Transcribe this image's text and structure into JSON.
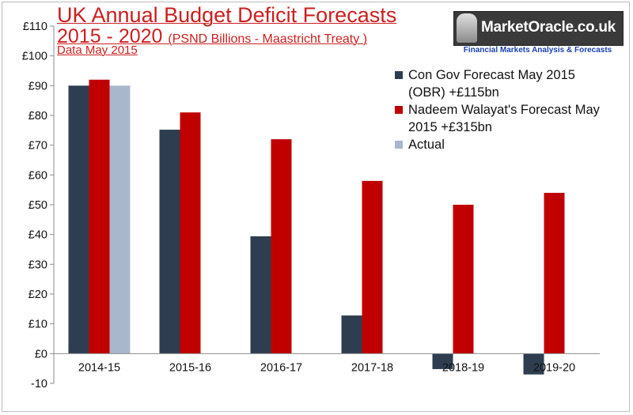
{
  "chart_data": {
    "type": "bar",
    "title": "UK Annual Budget Deficit Forecasts",
    "title_line2": "2015 - 2020",
    "title_line2_sub": "(PSND Billions - Maastricht Treaty )",
    "subtitle": "Data  May 2015",
    "categories": [
      "2014-15",
      "2015-16",
      "2016-17",
      "2017-18",
      "2018-19",
      "2019-20"
    ],
    "series": [
      {
        "name": "Con Gov  Forecast May 2015 (OBR) +£115bn",
        "color": "#2e3e50",
        "values": [
          90,
          75.2,
          39.4,
          12.8,
          -5.2,
          -7.0
        ]
      },
      {
        "name": "Nadeem Walayat's Forecast May 2015 +£315bn",
        "color": "#c00000",
        "values": [
          92,
          81,
          72,
          58,
          50,
          54
        ]
      },
      {
        "name": "Actual",
        "color": "#a9b7cc",
        "values": [
          90,
          null,
          null,
          null,
          null,
          null
        ]
      }
    ],
    "legend_lines": [
      [
        "Con Gov  Forecast May 2015",
        "(OBR) +£115bn"
      ],
      [
        "Nadeem Walayat's Forecast May",
        "2015 +£315bn"
      ],
      [
        "Actual"
      ]
    ],
    "ylim": [
      -10,
      110
    ],
    "yticks": [
      -10,
      0,
      10,
      20,
      30,
      40,
      50,
      60,
      70,
      80,
      90,
      100,
      110
    ],
    "ytick_labels": [
      "-10",
      "£0",
      "£10",
      "£20",
      "£30",
      "£40",
      "£50",
      "£60",
      "£70",
      "£80",
      "£90",
      "£100",
      "£110"
    ],
    "xlabel": "",
    "ylabel": "",
    "grid": false,
    "legend_position": "top-right"
  },
  "logo": {
    "brand": "MarketOracle.co.uk",
    "tagline": "Financial Markets Analysis & Forecasts"
  }
}
